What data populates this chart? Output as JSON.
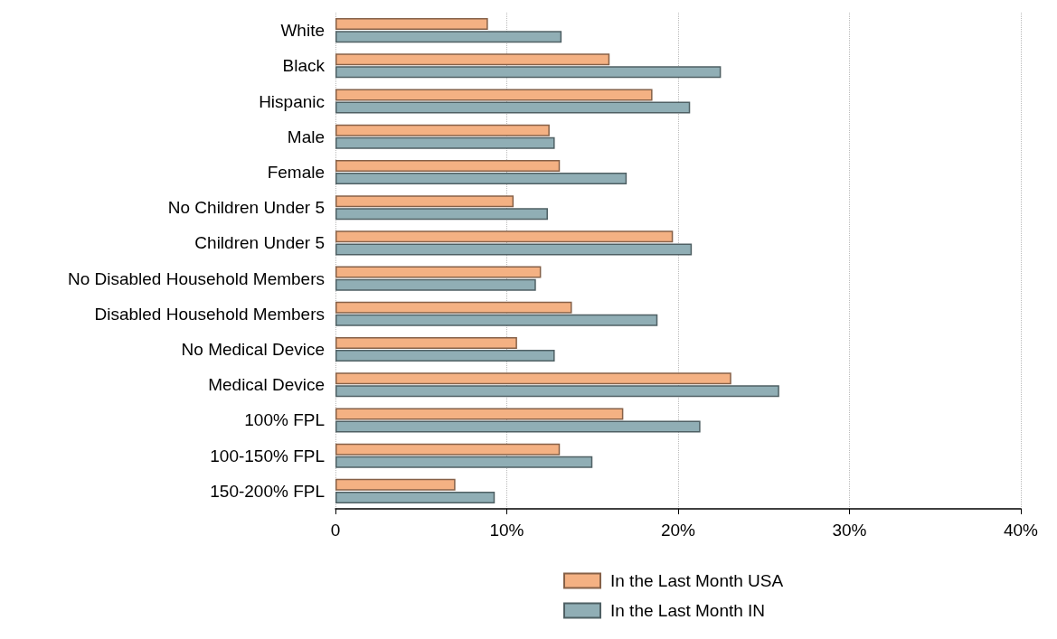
{
  "chart_data": {
    "type": "bar",
    "orientation": "horizontal",
    "categories": [
      "White",
      "Black",
      "Hispanic",
      "Male",
      "Female",
      "No Children Under 5",
      "Children Under 5",
      "No Disabled Household Members",
      "Disabled Household Members",
      "No Medical Device",
      "Medical Device",
      "100% FPL",
      "100-150% FPL",
      "150-200% FPL"
    ],
    "series": [
      {
        "name": "In the Last Month USA",
        "color": "#f4b183",
        "values": [
          8.9,
          16.0,
          18.5,
          12.5,
          13.1,
          10.4,
          19.7,
          12.0,
          13.8,
          10.6,
          23.1,
          16.8,
          13.1,
          7.0
        ]
      },
      {
        "name": "In the Last Month IN",
        "color": "#90aeb5",
        "values": [
          13.2,
          22.5,
          20.7,
          12.8,
          17.0,
          12.4,
          20.8,
          11.7,
          18.8,
          12.8,
          25.9,
          21.3,
          15.0,
          9.3
        ]
      }
    ],
    "xlim": [
      0,
      40
    ],
    "xticks": [
      {
        "value": 0,
        "label": "0"
      },
      {
        "value": 10,
        "label": "10%"
      },
      {
        "value": 20,
        "label": "20%"
      },
      {
        "value": 30,
        "label": "30%"
      },
      {
        "value": 40,
        "label": "40%"
      }
    ],
    "grid": "x",
    "legend": "bottom"
  }
}
